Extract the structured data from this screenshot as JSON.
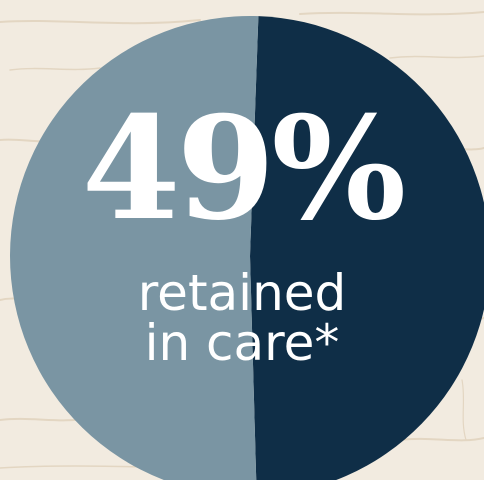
{
  "chart_data": {
    "type": "pie",
    "title": "",
    "slices": [
      {
        "label": "retained in care",
        "value": 49,
        "color": "#0f2e47"
      },
      {
        "label": "",
        "value": 51,
        "color": "#7a95a3"
      }
    ]
  },
  "display": {
    "value_text": "49%",
    "caption_line1": "retained",
    "caption_line2": "in care*"
  },
  "colors": {
    "background": "#f2ebe0",
    "grain": "#e3d6c2",
    "text": "#ffffff"
  }
}
